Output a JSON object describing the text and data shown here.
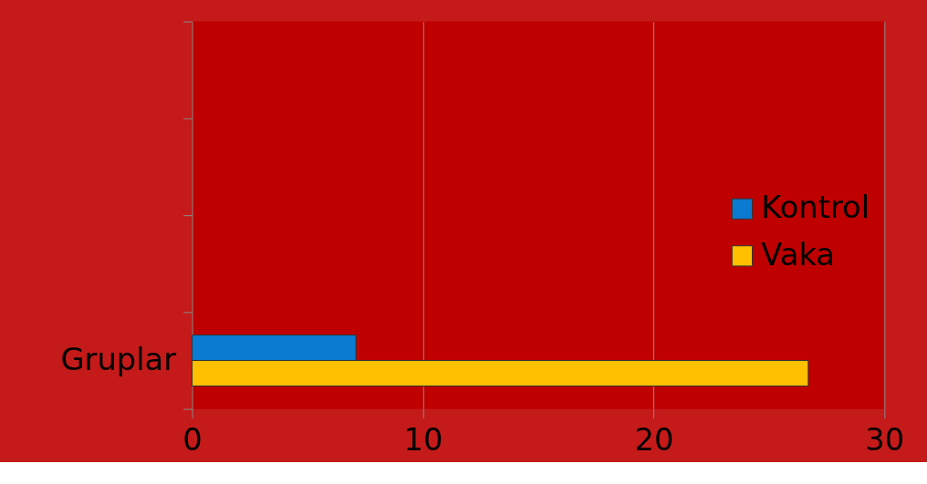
{
  "chart_data": {
    "type": "bar",
    "orientation": "horizontal",
    "categories": [
      null,
      null,
      null,
      "Gruplar"
    ],
    "series": [
      {
        "name": "Kontrol",
        "color": "#0a7bd0",
        "values": [
          null,
          null,
          null,
          7.1
        ]
      },
      {
        "name": "Vaka",
        "color": "#ffc000",
        "values": [
          null,
          null,
          null,
          26.7
        ]
      }
    ],
    "xlim": [
      0,
      30
    ],
    "xticks": [
      0,
      10,
      20,
      30
    ],
    "grid": "x",
    "legend": "right"
  }
}
